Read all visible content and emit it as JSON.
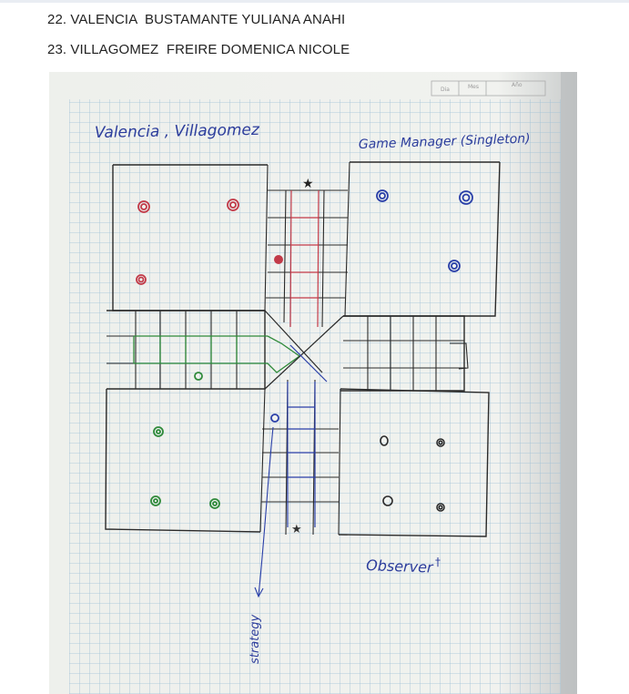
{
  "document": {
    "lines": [
      "22. VALENCIA  BUSTAMANTE YULIANA ANAHI",
      "23. VILLAGOMEZ  FREIRE DOMENICA NICOLE"
    ]
  },
  "photo": {
    "paper_header": [
      "Dia",
      "Mes",
      "Año"
    ],
    "handwriting": {
      "authors": "Valencia , Villagomez",
      "game_manager": "Game Manager (Singleton)",
      "observer": "Observer",
      "strategy": "strategy"
    },
    "colors": {
      "red": "#c23a48",
      "blue": "#2a3fa8",
      "green": "#2f8a3a",
      "black": "#2a2a2a",
      "grid": "#8fb8cf"
    }
  }
}
